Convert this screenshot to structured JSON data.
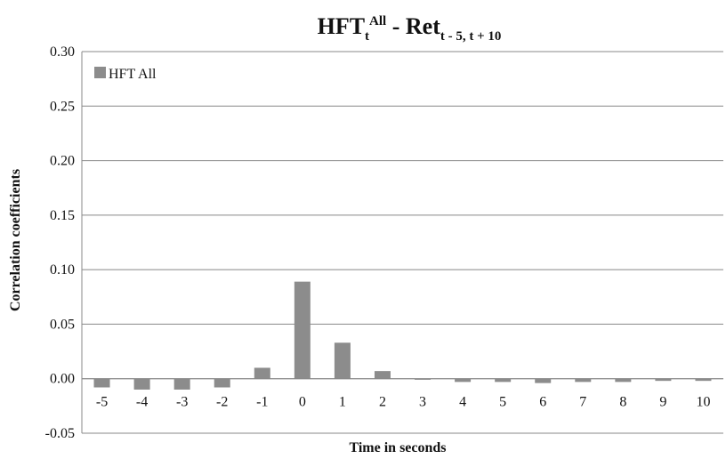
{
  "chart_data": {
    "type": "bar",
    "title": {
      "main": "HFT",
      "sub": "t",
      "sup": "All",
      "dash": " - Ret",
      "range": "t - 5, t + 10"
    },
    "xlabel": "Time in seconds",
    "ylabel": "Correlation coefficients",
    "categories": [
      "-5",
      "-4",
      "-3",
      "-2",
      "-1",
      "0",
      "1",
      "2",
      "3",
      "4",
      "5",
      "6",
      "7",
      "8",
      "9",
      "10"
    ],
    "series": [
      {
        "name": "HFT All",
        "color": "#8c8c8c",
        "values": [
          -0.008,
          -0.01,
          -0.01,
          -0.008,
          0.01,
          0.089,
          0.033,
          0.007,
          -0.001,
          -0.003,
          -0.003,
          -0.004,
          -0.003,
          -0.003,
          -0.002,
          -0.002
        ]
      }
    ],
    "ylim": [
      -0.05,
      0.3
    ],
    "yticks": [
      "-0.05",
      "0.00",
      "0.05",
      "0.10",
      "0.15",
      "0.20",
      "0.25",
      "0.30"
    ],
    "grid": true,
    "legend_position": "top-left"
  }
}
